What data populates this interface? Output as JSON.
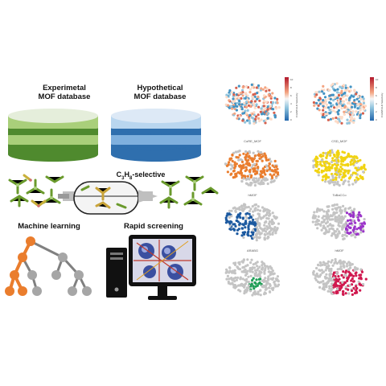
{
  "left": {
    "exp_db": {
      "line1": "Experimetal",
      "line2": "MOF database"
    },
    "hyp_db": {
      "line1": "Hypothetical",
      "line2": "MOF database"
    },
    "membrane": {
      "prefix": "C",
      "sub1": "3",
      "mid": "H",
      "sub2": "8",
      "suffix": "-selective"
    },
    "ml_label": "Machine learning",
    "rapid_label": "Rapid screening"
  },
  "right": {
    "colorbar_axis_label": "C3H8/C3H6 Selectivity",
    "colorbar_ticks": [
      "10",
      "8",
      "6",
      "4",
      "2",
      "0"
    ],
    "panel_labels": [
      "CoRE_MOF",
      "CSD_MOF",
      "hMOF",
      "ToBaCCo",
      "ARABG",
      "hMOF"
    ]
  },
  "colors": {
    "green_dark": "#4f8a2e",
    "green_light": "#a9cf7a",
    "blue_dark": "#2f6fae",
    "blue_light": "#b9d6ef",
    "orange": "#ea7d2d",
    "yellow": "#f1d311",
    "navy": "#1d5aa0",
    "purple": "#9b35c9",
    "emerald": "#1f9e56",
    "crimson": "#d0194f",
    "gray_pts": "#c4c4c4"
  }
}
